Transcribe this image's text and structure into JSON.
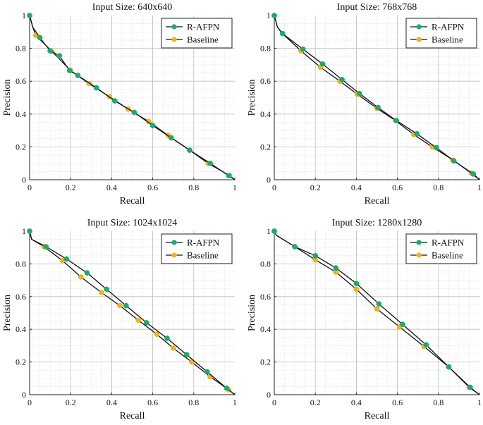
{
  "figure": {
    "legend_labels": [
      "R-AFPN",
      "Baseline"
    ],
    "colors": {
      "r_afpn": "#1aab6e",
      "baseline": "#f0b21e",
      "line": "#111111",
      "grid": "#d8d8d8"
    }
  },
  "chart_data": [
    {
      "type": "line",
      "title": "Input Size: 640x640",
      "xlabel": "Recall",
      "ylabel": "Precision",
      "xlim": [
        0,
        1
      ],
      "ylim": [
        0,
        1
      ],
      "xticks": [
        "0",
        "0.2",
        "0.4",
        "0.6",
        "0.8",
        "1"
      ],
      "yticks": [
        "0",
        "0.2",
        "0.4",
        "0.6",
        "0.8",
        "1"
      ],
      "legend_position": "top-right",
      "series": [
        {
          "name": "R-AFPN",
          "color": "#1aab6e",
          "x": [
            0,
            0.015,
            0.05,
            0.1,
            0.145,
            0.195,
            0.235,
            0.325,
            0.415,
            0.51,
            0.6,
            0.69,
            0.78,
            0.88,
            0.97,
            1.0
          ],
          "y": [
            1.0,
            0.93,
            0.865,
            0.785,
            0.755,
            0.665,
            0.635,
            0.56,
            0.48,
            0.41,
            0.33,
            0.255,
            0.18,
            0.1,
            0.025,
            0.0
          ]
        },
        {
          "name": "Baseline",
          "color": "#f0b21e",
          "x": [
            0,
            0.015,
            0.03,
            0.11,
            0.2,
            0.29,
            0.39,
            0.48,
            0.58,
            0.675,
            0.78,
            0.87,
            0.975,
            1.0
          ],
          "y": [
            1.0,
            0.93,
            0.88,
            0.78,
            0.665,
            0.585,
            0.505,
            0.43,
            0.355,
            0.27,
            0.18,
            0.1,
            0.025,
            0.0
          ]
        }
      ]
    },
    {
      "type": "line",
      "title": "Input Size: 768x768",
      "xlabel": "Recall",
      "ylabel": "Precision",
      "xlim": [
        0,
        1
      ],
      "ylim": [
        0,
        1
      ],
      "xticks": [
        "0",
        "0.2",
        "0.4",
        "0.6",
        "0.8",
        "1"
      ],
      "yticks": [
        "0",
        "0.2",
        "0.4",
        "0.6",
        "0.8",
        "1"
      ],
      "legend_position": "top-right",
      "series": [
        {
          "name": "R-AFPN",
          "color": "#1aab6e",
          "x": [
            0,
            0.015,
            0.04,
            0.14,
            0.235,
            0.33,
            0.415,
            0.505,
            0.595,
            0.695,
            0.79,
            0.875,
            0.97,
            1.0
          ],
          "y": [
            1.0,
            0.93,
            0.89,
            0.795,
            0.705,
            0.61,
            0.525,
            0.44,
            0.36,
            0.28,
            0.195,
            0.115,
            0.035,
            0.0
          ]
        },
        {
          "name": "Baseline",
          "color": "#f0b21e",
          "x": [
            0,
            0.015,
            0.04,
            0.13,
            0.225,
            0.32,
            0.405,
            0.5,
            0.59,
            0.68,
            0.77,
            0.87,
            0.96,
            1.0
          ],
          "y": [
            1.0,
            0.93,
            0.89,
            0.785,
            0.685,
            0.6,
            0.52,
            0.435,
            0.36,
            0.275,
            0.2,
            0.12,
            0.04,
            0.0
          ]
        }
      ]
    },
    {
      "type": "line",
      "title": "Input Size: 1024x1024",
      "xlabel": "Recall",
      "ylabel": "Precision",
      "xlim": [
        0,
        1
      ],
      "ylim": [
        0,
        1
      ],
      "xticks": [
        "0",
        "0.2",
        "0.4",
        "0.6",
        "0.8",
        "1"
      ],
      "yticks": [
        "0",
        "0.2",
        "0.4",
        "0.6",
        "0.8",
        "1"
      ],
      "legend_position": "top-right",
      "series": [
        {
          "name": "R-AFPN",
          "color": "#1aab6e",
          "x": [
            0,
            0.01,
            0.08,
            0.18,
            0.28,
            0.375,
            0.47,
            0.57,
            0.67,
            0.765,
            0.865,
            0.96,
            1.0
          ],
          "y": [
            1.0,
            0.95,
            0.905,
            0.83,
            0.745,
            0.645,
            0.545,
            0.44,
            0.345,
            0.245,
            0.14,
            0.04,
            0.0
          ]
        },
        {
          "name": "Baseline",
          "color": "#f0b21e",
          "x": [
            0,
            0.01,
            0.07,
            0.16,
            0.25,
            0.35,
            0.44,
            0.53,
            0.62,
            0.7,
            0.79,
            0.88,
            0.97,
            1.0
          ],
          "y": [
            1.0,
            0.95,
            0.905,
            0.82,
            0.72,
            0.625,
            0.545,
            0.455,
            0.37,
            0.285,
            0.2,
            0.11,
            0.03,
            0.0
          ]
        }
      ]
    },
    {
      "type": "line",
      "title": "Input Size: 1280x1280",
      "xlabel": "Recall",
      "ylabel": "Precision",
      "xlim": [
        0,
        1
      ],
      "ylim": [
        0,
        1
      ],
      "xticks": [
        "0",
        "0.2",
        "0.4",
        "0.6",
        "0.8",
        "1"
      ],
      "yticks": [
        "0",
        "0.2",
        "0.4",
        "0.6",
        "0.8",
        "1"
      ],
      "legend_position": "top-right",
      "series": [
        {
          "name": "R-AFPN",
          "color": "#1aab6e",
          "x": [
            0,
            0.01,
            0.1,
            0.2,
            0.3,
            0.4,
            0.51,
            0.625,
            0.74,
            0.85,
            0.955,
            1.0
          ],
          "y": [
            1.0,
            0.975,
            0.905,
            0.85,
            0.775,
            0.68,
            0.555,
            0.43,
            0.305,
            0.17,
            0.045,
            0.0
          ]
        },
        {
          "name": "Baseline",
          "color": "#f0b21e",
          "x": [
            0,
            0.01,
            0.1,
            0.2,
            0.3,
            0.4,
            0.5,
            0.61,
            0.73,
            0.85,
            0.95,
            1.0
          ],
          "y": [
            1.0,
            0.975,
            0.905,
            0.825,
            0.75,
            0.645,
            0.525,
            0.415,
            0.295,
            0.17,
            0.045,
            0.0
          ]
        }
      ]
    }
  ]
}
